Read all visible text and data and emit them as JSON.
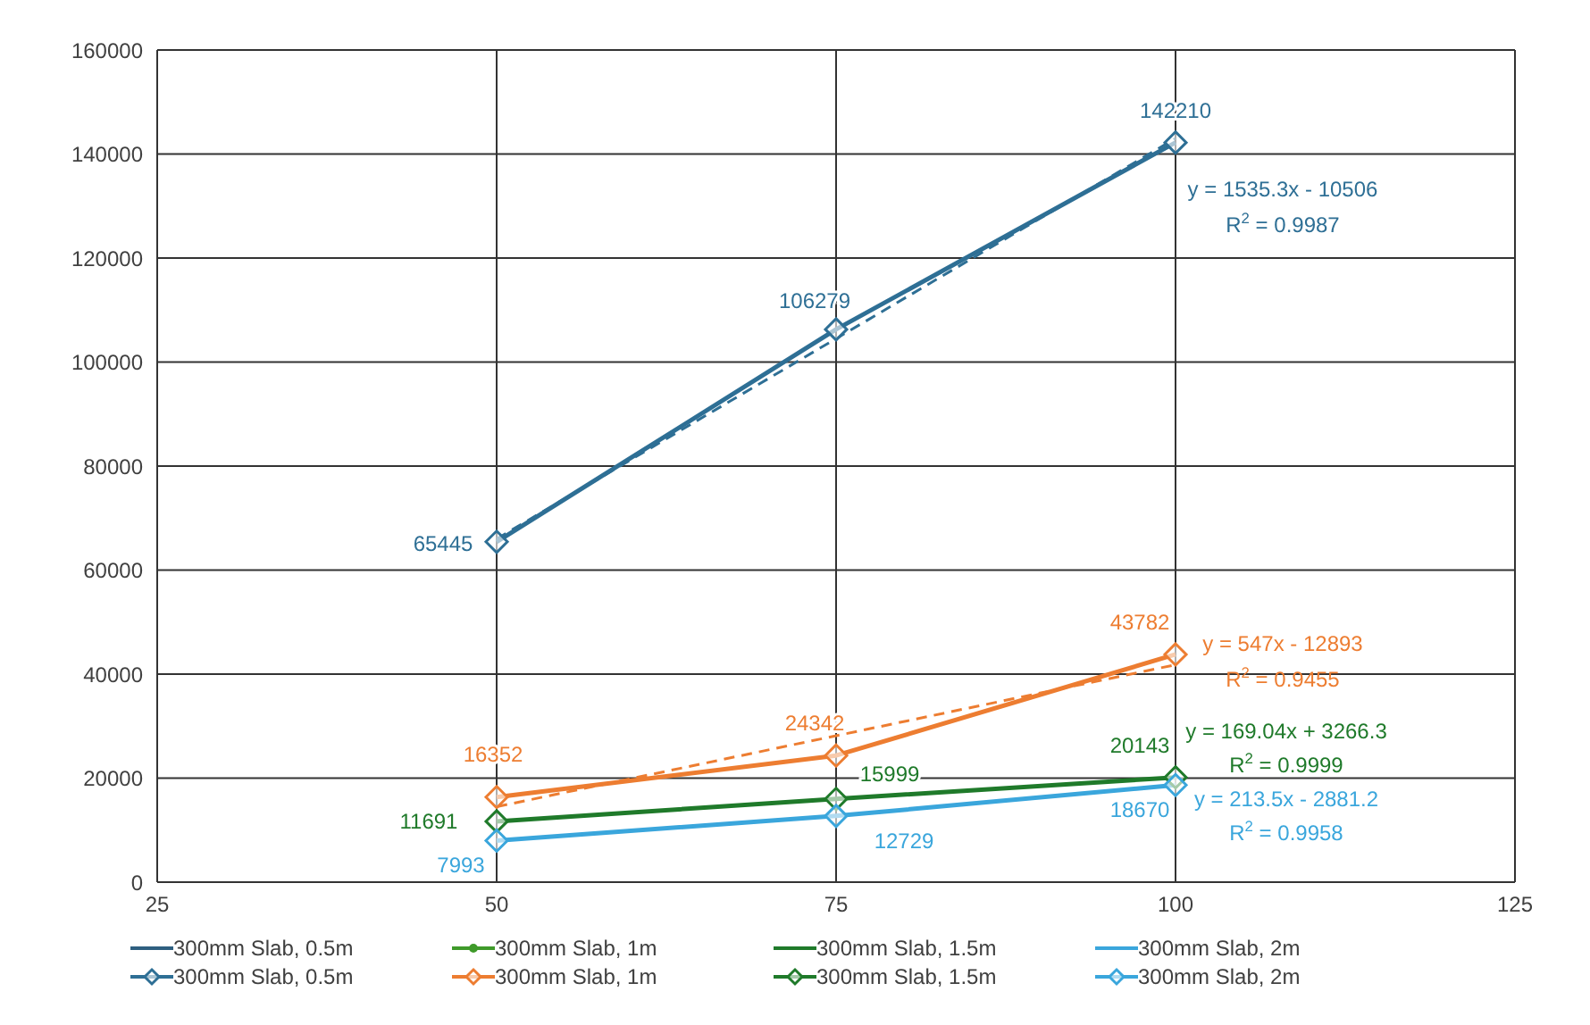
{
  "chart_data": {
    "type": "line",
    "xlim": [
      25,
      125
    ],
    "xticks": [
      25,
      50,
      75,
      100,
      125
    ],
    "ylim": [
      0,
      160000
    ],
    "yticks": [
      0,
      20000,
      40000,
      60000,
      80000,
      100000,
      120000,
      140000,
      160000
    ],
    "grid": true,
    "legend": "bottom",
    "line_style": "solid",
    "series": [
      {
        "name": "300mm Slab, 0.5m",
        "color": "#2e5f80",
        "marker": "none"
      },
      {
        "name": "300mm Slab, 1m",
        "color": "#3f9a2a",
        "marker": "circle"
      },
      {
        "name": "300mm Slab, 1.5m",
        "color": "#1f7a2a",
        "marker": "none"
      },
      {
        "name": "300mm Slab, 2m",
        "color": "#3aa6dc",
        "marker": "none"
      },
      {
        "name": "300mm Slab, 0.5m",
        "color": "#2e6f95",
        "x": [
          50,
          75,
          100
        ],
        "values": [
          65445,
          106279,
          142210
        ],
        "marker": "diamond",
        "value_labels": [
          "65445",
          "106279",
          "142210"
        ]
      },
      {
        "name": "300mm Slab, 1m",
        "color": "#ed7d31",
        "x": [
          50,
          75,
          100
        ],
        "values": [
          16352,
          24342,
          43782
        ],
        "marker": "diamond",
        "value_labels": [
          "16352",
          "24342",
          "43782"
        ]
      },
      {
        "name": "300mm Slab, 1.5m",
        "color": "#1f7a2a",
        "x": [
          50,
          75,
          100
        ],
        "values": [
          11691,
          15999,
          20143
        ],
        "marker": "diamond",
        "value_labels": [
          "11691",
          "15999",
          "20143"
        ]
      },
      {
        "name": "300mm Slab, 2m",
        "color": "#3aa6dc",
        "x": [
          50,
          75,
          100
        ],
        "values": [
          7993,
          12729,
          18670
        ],
        "marker": "diamond",
        "value_labels": [
          "7993",
          "12729",
          "18670"
        ]
      },
      {
        "type": "line",
        "color": "#2e6f95",
        "x": [
          50,
          100
        ],
        "values": [
          66000,
          143000
        ],
        "marker": "none",
        "line_style": "dashed"
      },
      {
        "type": "line",
        "color": "#ed7d31",
        "x": [
          50,
          100
        ],
        "values": [
          14500,
          41800
        ],
        "marker": "none",
        "line_style": "dashed"
      }
    ],
    "annotations": [
      "y = 1535.3x - 10506",
      "R$^{2}$ = 0.9987",
      "y = 547x - 12893",
      "R$^{2}$ = 0.9455",
      "y = 169.04x + 3266.3",
      "R$^{2}$ = 0.9999",
      "y = 213.5x - 2881.2",
      "R$^{2}$ = 0.9958"
    ]
  }
}
